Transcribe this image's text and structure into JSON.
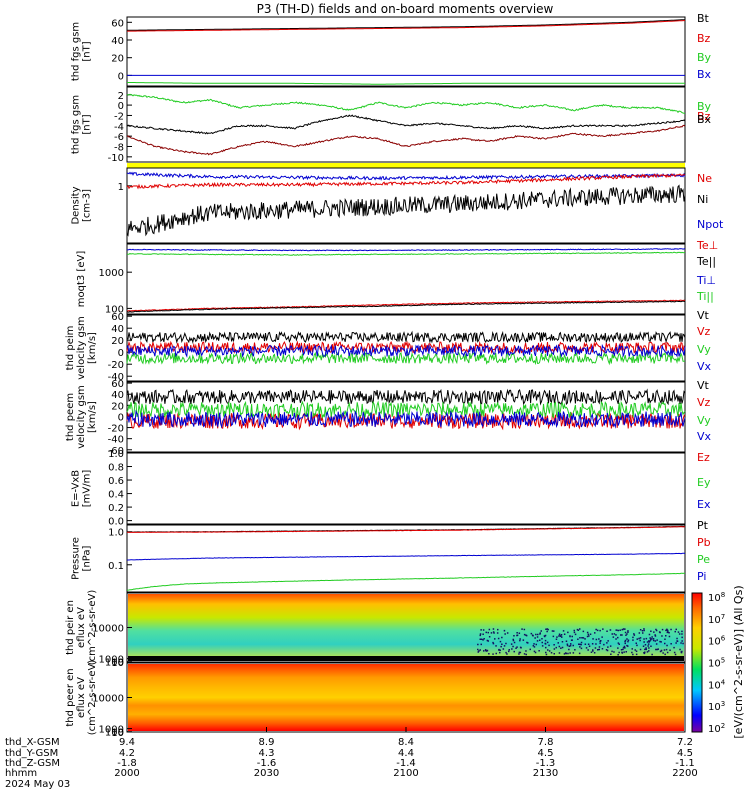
{
  "title": "P3 (TH-D) fields and on-board moments overview",
  "colors": {
    "black": "#000000",
    "red": "#e00000",
    "green": "#22cc22",
    "blue": "#0000d0",
    "darkred": "#8b0000",
    "yellow": "#ffff00"
  },
  "chart_data": [
    {
      "type": "line",
      "ylabel": "thd fgs gsm [nT]",
      "yticks": [
        "60",
        "40",
        "20",
        "0"
      ],
      "ylim": [
        -12,
        66
      ],
      "legend": [
        "Bt",
        "Bz",
        "By",
        "Bx"
      ],
      "series": [
        {
          "name": "Bt",
          "color": "black",
          "x": [
            0,
            30,
            60,
            90,
            120,
            150,
            180,
            200
          ],
          "y": [
            51,
            52,
            53,
            54,
            55,
            57,
            60,
            63
          ]
        },
        {
          "name": "Bz",
          "color": "red",
          "x": [
            0,
            30,
            60,
            90,
            120,
            150,
            180,
            200
          ],
          "y": [
            50,
            51,
            52,
            53,
            54,
            56,
            59,
            62
          ]
        },
        {
          "name": "By",
          "color": "green",
          "x": [
            0,
            30,
            60,
            90,
            120,
            150,
            180,
            200
          ],
          "y": [
            -8,
            -9,
            -9,
            -10,
            -9,
            -9,
            -9,
            -9
          ]
        },
        {
          "name": "Bx",
          "color": "blue",
          "x": [
            0,
            30,
            60,
            90,
            120,
            150,
            180,
            200
          ],
          "y": [
            0,
            0,
            0,
            0,
            0,
            0,
            0,
            0
          ]
        }
      ]
    },
    {
      "type": "line",
      "ylabel": "thd fgs gsm [nT]",
      "yticks": [
        "2",
        "0",
        "-2",
        "-4",
        "-6",
        "-8",
        "-10"
      ],
      "ylim": [
        -11,
        3.5
      ],
      "legend": [
        "By",
        "Bz",
        "Bx"
      ],
      "series": [
        {
          "name": "By",
          "color": "green",
          "x": [
            0,
            10,
            20,
            30,
            40,
            50,
            60,
            70,
            80,
            90,
            100,
            110,
            120,
            130,
            140,
            150,
            160,
            170,
            180,
            190,
            200
          ],
          "y": [
            2,
            1.5,
            0.5,
            1,
            -0.5,
            0,
            0.5,
            0,
            -1,
            0.5,
            -0.5,
            0.5,
            0,
            0.5,
            -0.5,
            0,
            -1,
            0,
            -0.5,
            -0.5,
            -1.5
          ]
        },
        {
          "name": "Bz",
          "color": "darkred",
          "x": [
            0,
            10,
            20,
            30,
            40,
            50,
            60,
            70,
            80,
            90,
            100,
            110,
            120,
            130,
            140,
            150,
            160,
            170,
            180,
            190,
            200
          ],
          "y": [
            -6,
            -8,
            -9,
            -9.5,
            -8,
            -7,
            -8,
            -7,
            -6,
            -6.5,
            -8,
            -7,
            -6.5,
            -7,
            -6,
            -6.5,
            -5.5,
            -6,
            -5.5,
            -5,
            -4
          ]
        },
        {
          "name": "Bx",
          "color": "black",
          "x": [
            0,
            10,
            20,
            30,
            40,
            50,
            60,
            70,
            80,
            90,
            100,
            110,
            120,
            130,
            140,
            150,
            160,
            170,
            180,
            190,
            200
          ],
          "y": [
            -4,
            -4.5,
            -5,
            -5.5,
            -4,
            -4,
            -4.5,
            -3,
            -2,
            -3,
            -4,
            -3.5,
            -4,
            -4.5,
            -4,
            -4.5,
            -4,
            -4,
            -4,
            -3.5,
            -3
          ]
        }
      ]
    },
    {
      "type": "line",
      "ylabel": "Density [cm-3]",
      "yticks": [
        "1"
      ],
      "ylim": [
        0.08,
        2.2
      ],
      "log": true,
      "legend": [
        "Ne",
        "Ni",
        "Npot"
      ],
      "series": [
        {
          "name": "Npot",
          "color": "blue",
          "x": [
            0,
            30,
            60,
            90,
            120,
            150,
            180,
            200
          ],
          "y": [
            1.7,
            1.5,
            1.45,
            1.4,
            1.45,
            1.5,
            1.55,
            1.6
          ]
        },
        {
          "name": "Ne",
          "color": "red",
          "x": [
            0,
            30,
            60,
            90,
            120,
            150,
            180,
            200
          ],
          "y": [
            0.95,
            1.05,
            1.05,
            1.1,
            1.15,
            1.3,
            1.5,
            1.6
          ]
        },
        {
          "name": "Ni",
          "color": "black",
          "x": [
            0,
            10,
            20,
            30,
            60,
            90,
            120,
            150,
            180,
            200
          ],
          "y": [
            0.15,
            0.18,
            0.25,
            0.3,
            0.35,
            0.4,
            0.45,
            0.55,
            0.65,
            0.7
          ]
        }
      ]
    },
    {
      "type": "line",
      "ylabel": "moqt3 [eV]",
      "yticks": [
        "1000",
        "100"
      ],
      "ylim": [
        70,
        6000
      ],
      "log": true,
      "legend": [
        "Te⊥",
        "Te||",
        "Ti⊥",
        "Ti||"
      ],
      "series": [
        {
          "name": "Ti⊥",
          "color": "blue",
          "x": [
            0,
            30,
            60,
            90,
            120,
            150,
            180,
            200
          ],
          "y": [
            4200,
            4100,
            4000,
            4000,
            4100,
            4200,
            4300,
            4400
          ]
        },
        {
          "name": "Ti||",
          "color": "green",
          "x": [
            0,
            30,
            60,
            90,
            120,
            150,
            180,
            200
          ],
          "y": [
            3200,
            3100,
            3000,
            3100,
            3200,
            3300,
            3400,
            3500
          ]
        },
        {
          "name": "Te⊥",
          "color": "red",
          "x": [
            0,
            30,
            60,
            90,
            120,
            150,
            180,
            200
          ],
          "y": [
            85,
            100,
            110,
            125,
            140,
            150,
            160,
            165
          ]
        },
        {
          "name": "Te||",
          "color": "black",
          "x": [
            0,
            30,
            60,
            90,
            120,
            150,
            180,
            200
          ],
          "y": [
            80,
            95,
            105,
            115,
            130,
            140,
            150,
            155
          ]
        }
      ]
    },
    {
      "type": "line",
      "ylabel": "thd peim velocity gsm [km/s]",
      "yticks": [
        "60",
        "40",
        "20",
        "0",
        "-20",
        "-40"
      ],
      "ylim": [
        -48,
        62
      ],
      "legend": [
        "Vt",
        "Vz",
        "Vy",
        "Vx"
      ],
      "series": [
        {
          "name": "Vt",
          "color": "black",
          "x": [
            0,
            200
          ],
          "y": [
            25,
            25
          ]
        },
        {
          "name": "Vz",
          "color": "red",
          "x": [
            0,
            200
          ],
          "y": [
            8,
            8
          ]
        },
        {
          "name": "Vy",
          "color": "green",
          "x": [
            0,
            200
          ],
          "y": [
            -10,
            -10
          ]
        },
        {
          "name": "Vx",
          "color": "blue",
          "x": [
            0,
            200
          ],
          "y": [
            2,
            2
          ]
        }
      ]
    },
    {
      "type": "line",
      "ylabel": "thd peem velocity gsm [km/s]",
      "yticks": [
        "60",
        "40",
        "20",
        "0",
        "-20",
        "-40",
        "-60"
      ],
      "ylim": [
        -64,
        62
      ],
      "legend": [
        "Vt",
        "Vz",
        "Vy",
        "Vx"
      ],
      "series": [
        {
          "name": "Vt",
          "color": "black",
          "x": [
            0,
            200
          ],
          "y": [
            35,
            35
          ]
        },
        {
          "name": "Vz",
          "color": "red",
          "x": [
            0,
            200
          ],
          "y": [
            -8,
            -8
          ]
        },
        {
          "name": "Vy",
          "color": "green",
          "x": [
            0,
            200
          ],
          "y": [
            12,
            12
          ]
        },
        {
          "name": "Vx",
          "color": "blue",
          "x": [
            0,
            200
          ],
          "y": [
            -5,
            -5
          ]
        }
      ]
    },
    {
      "type": "line",
      "ylabel": "E=-VxB [mV/m]",
      "yticks": [
        "1.0",
        "0.8",
        "0.6",
        "0.4",
        "0.2",
        "0.0"
      ],
      "ylim": [
        -0.05,
        1.0
      ],
      "legend": [
        "Ez",
        "Ey",
        "Ex"
      ],
      "series": []
    },
    {
      "type": "line",
      "ylabel": "Pressure [nPa]",
      "yticks": [
        "1.0",
        "0.1"
      ],
      "ylim": [
        0.015,
        1.6
      ],
      "log": true,
      "legend": [
        "Pt",
        "Pb",
        "Pe",
        "Pi"
      ],
      "series": [
        {
          "name": "Pt",
          "color": "black",
          "x": [
            0,
            30,
            60,
            90,
            120,
            150,
            180,
            200
          ],
          "y": [
            0.98,
            1.0,
            1.05,
            1.1,
            1.15,
            1.25,
            1.35,
            1.45
          ]
        },
        {
          "name": "Pb",
          "color": "red",
          "x": [
            0,
            30,
            60,
            90,
            120,
            150,
            180,
            200
          ],
          "y": [
            0.96,
            0.98,
            1.02,
            1.07,
            1.12,
            1.22,
            1.32,
            1.42
          ]
        },
        {
          "name": "Pi",
          "color": "blue",
          "x": [
            0,
            30,
            60,
            90,
            120,
            150,
            180,
            200
          ],
          "y": [
            0.14,
            0.16,
            0.17,
            0.18,
            0.19,
            0.2,
            0.21,
            0.22
          ]
        },
        {
          "name": "Pe",
          "color": "green",
          "x": [
            0,
            10,
            20,
            30,
            60,
            90,
            120,
            150,
            180,
            200
          ],
          "y": [
            0.017,
            0.022,
            0.026,
            0.028,
            0.032,
            0.036,
            0.04,
            0.045,
            0.05,
            0.055
          ]
        }
      ]
    },
    {
      "type": "heatmap",
      "ylabel": "thd peir en eflux eV (cm^2-s-sr-eV)",
      "yticks": [
        "10000",
        "1000",
        "100",
        "10"
      ],
      "ylim": [
        7,
        20000
      ]
    },
    {
      "type": "heatmap",
      "ylabel": "thd peer en eflux eV (cm^2-s-sr-eV)",
      "yticks": [
        "10000",
        "1000",
        "100",
        "10"
      ],
      "ylim": [
        7,
        20000
      ]
    }
  ],
  "colorbar": {
    "label": "[eV/(cm^2-s-sr-eV)] (All Qs)",
    "ticks": [
      "10^8",
      "10^7",
      "10^6",
      "10^5",
      "10^4",
      "10^3",
      "10^2"
    ]
  },
  "xaxis": {
    "ticks": [
      "2000",
      "2030",
      "2100",
      "2130",
      "2200"
    ],
    "rows": [
      {
        "label": "thd_X-GSM",
        "values": [
          "9.4",
          "8.9",
          "8.4",
          "7.8",
          "7.2"
        ]
      },
      {
        "label": "thd_Y-GSM",
        "values": [
          "4.2",
          "4.3",
          "4.4",
          "4.5",
          "4.5"
        ]
      },
      {
        "label": "thd_Z-GSM",
        "values": [
          "-1.8",
          "-1.6",
          "-1.4",
          "-1.3",
          "-1.1"
        ]
      },
      {
        "label": "hhmm",
        "values": [
          "2000",
          "2030",
          "2100",
          "2130",
          "2200"
        ]
      }
    ],
    "date": "2024 May 03"
  }
}
